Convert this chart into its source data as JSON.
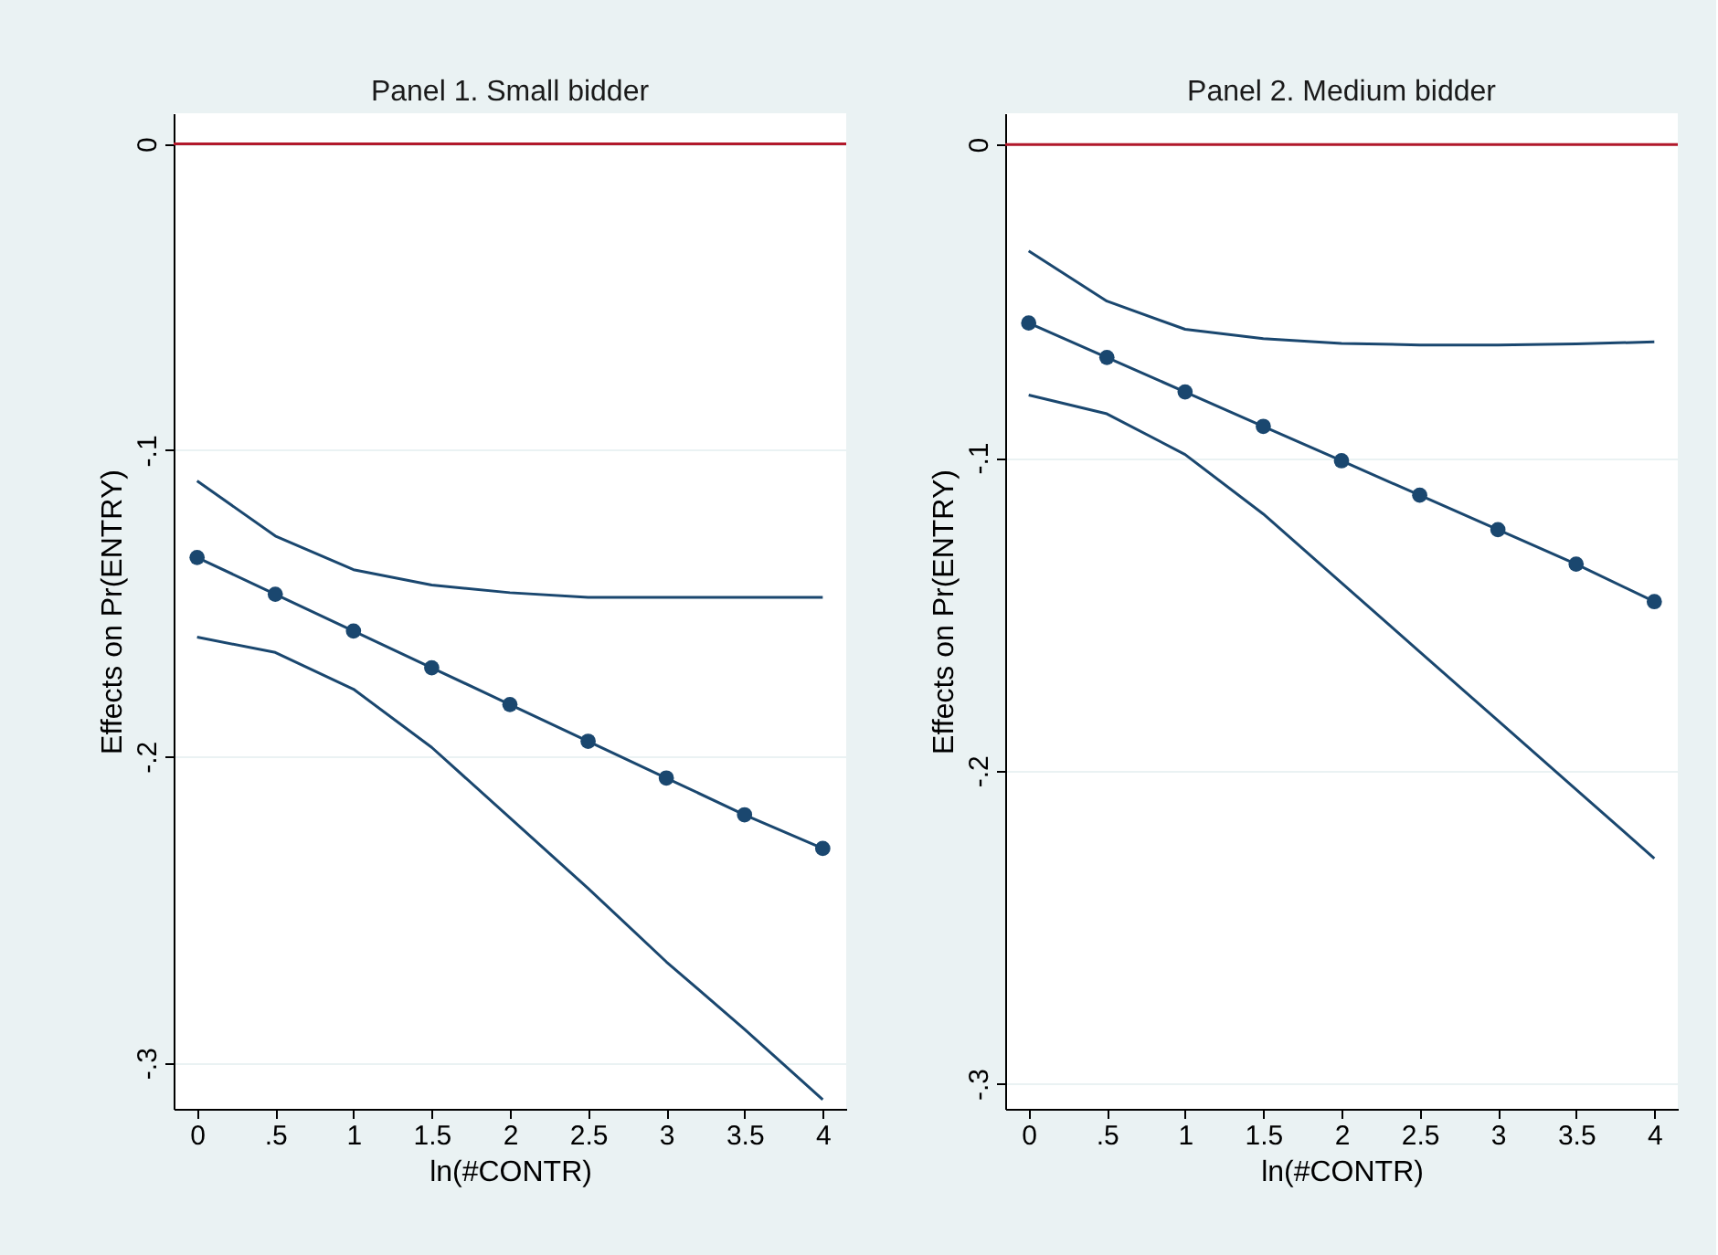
{
  "chart_data": [
    {
      "type": "line",
      "title": "Panel 1. Small bidder",
      "xlabel": "ln(#CONTR)",
      "ylabel": "Effects on Pr(ENTRY)",
      "x": [
        0,
        0.5,
        1,
        1.5,
        2,
        2.5,
        3,
        3.5,
        4
      ],
      "series": [
        {
          "color": "#1a476f",
          "marker": "none",
          "values": [
            -0.11,
            -0.128,
            -0.139,
            -0.144,
            -0.1465,
            -0.148,
            -0.148,
            -0.148,
            -0.148
          ]
        },
        {
          "color": "#1a476f",
          "marker": "circle",
          "values": [
            -0.135,
            -0.147,
            -0.159,
            -0.171,
            -0.183,
            -0.195,
            -0.207,
            -0.219,
            -0.23
          ]
        },
        {
          "color": "#1a476f",
          "marker": "none",
          "values": [
            -0.161,
            -0.166,
            -0.178,
            -0.197,
            -0.22,
            -0.243,
            -0.267,
            -0.289,
            -0.312
          ]
        }
      ],
      "xlim": [
        -0.15,
        4.15
      ],
      "ylim": [
        -0.315,
        0.01
      ],
      "xticks": [
        0,
        {
          "value": 0.5,
          "label": ".5"
        },
        1,
        1.5,
        2,
        2.5,
        3,
        3.5,
        4
      ],
      "yticks": [
        0,
        {
          "value": -0.1,
          "label": "-.1"
        },
        {
          "value": -0.2,
          "label": "-.2"
        },
        {
          "value": -0.3,
          "label": "-.3"
        }
      ],
      "grid": "y",
      "ref_lines": [
        {
          "axis": "y",
          "value": 0,
          "color": "#b2182b"
        }
      ]
    },
    {
      "type": "line",
      "title": "Panel 2. Medium bidder",
      "xlabel": "ln(#CONTR)",
      "ylabel": "Effects on Pr(ENTRY)",
      "x": [
        0,
        0.5,
        1,
        1.5,
        2,
        2.5,
        3,
        3.5,
        4
      ],
      "series": [
        {
          "color": "#1a476f",
          "marker": "none",
          "values": [
            -0.034,
            -0.05,
            -0.059,
            -0.062,
            -0.0635,
            -0.064,
            -0.064,
            -0.0637,
            -0.063
          ]
        },
        {
          "color": "#1a476f",
          "marker": "circle",
          "values": [
            -0.057,
            -0.068,
            -0.079,
            -0.09,
            -0.101,
            -0.112,
            -0.123,
            -0.134,
            -0.146
          ]
        },
        {
          "color": "#1a476f",
          "marker": "none",
          "values": [
            -0.08,
            -0.086,
            -0.099,
            -0.118,
            -0.14,
            -0.162,
            -0.184,
            -0.206,
            -0.228
          ]
        }
      ],
      "xlim": [
        -0.15,
        4.15
      ],
      "ylim": [
        -0.308,
        0.01
      ],
      "xticks": [
        0,
        {
          "value": 0.5,
          "label": ".5"
        },
        1,
        1.5,
        2,
        2.5,
        3,
        3.5,
        4
      ],
      "yticks": [
        0,
        {
          "value": -0.1,
          "label": "-.1"
        },
        {
          "value": -0.2,
          "label": "-.2"
        },
        {
          "value": -0.3,
          "label": "-.3"
        }
      ],
      "grid": "y",
      "ref_lines": [
        {
          "axis": "y",
          "value": 0,
          "color": "#b2182b"
        }
      ]
    }
  ]
}
